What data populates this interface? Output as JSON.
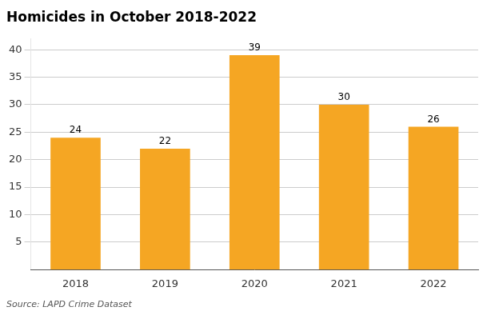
{
  "chart_data": {
    "type": "bar",
    "title": "Homicides in October 2018-2022",
    "categories": [
      "2018",
      "2019",
      "2020",
      "2021",
      "2022"
    ],
    "values": [
      24,
      22,
      39,
      30,
      26
    ],
    "color": "#F5A623",
    "ylim": [
      0,
      42
    ],
    "yticks": [
      5,
      10,
      15,
      20,
      25,
      30,
      35,
      40
    ],
    "grid": true,
    "data_labels": true,
    "annotations": [
      "Source: LAPD Crime Dataset"
    ]
  }
}
